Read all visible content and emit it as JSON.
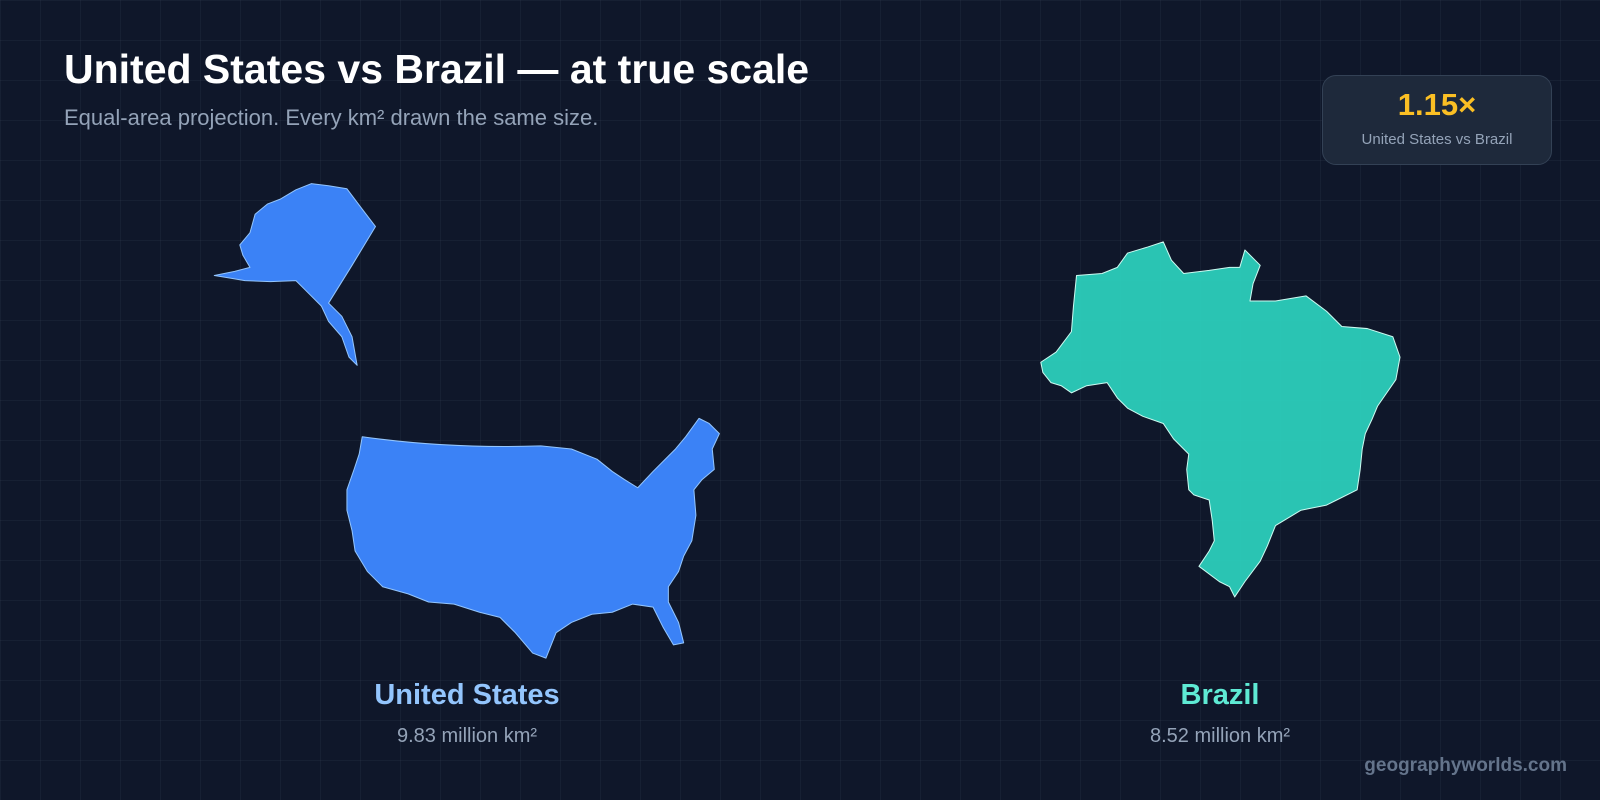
{
  "header": {
    "title": "United States vs Brazil — at true scale",
    "subtitle": "Equal-area projection. Every km² drawn the same size."
  },
  "ratio_badge": {
    "value": "1.15×",
    "label": "United States vs Brazil"
  },
  "countries": [
    {
      "name": "United States",
      "area": "9.83 million km²"
    },
    {
      "name": "Brazil",
      "area": "8.52 million km²"
    }
  ],
  "footer": {
    "brand": "geographyworlds.com"
  }
}
